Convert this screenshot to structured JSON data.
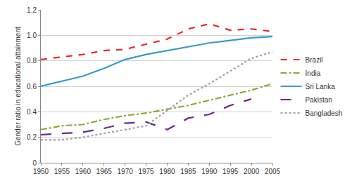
{
  "chart_data": {
    "type": "line",
    "y_label": "Gender ratio in educational attainment",
    "x": [
      1950,
      1955,
      1960,
      1965,
      1970,
      1975,
      1980,
      1985,
      1990,
      1995,
      2000,
      2005
    ],
    "series": [
      {
        "name": "Brazil",
        "color": "#e02b2b",
        "line_style": "dash",
        "values": [
          0.81,
          0.83,
          0.85,
          0.88,
          0.89,
          0.93,
          0.97,
          1.05,
          1.09,
          1.04,
          1.05,
          1.03
        ]
      },
      {
        "name": "India",
        "color": "#8fa83a",
        "line_style": "dashdot",
        "values": [
          0.26,
          0.29,
          0.3,
          0.34,
          0.37,
          0.39,
          0.42,
          0.45,
          0.49,
          0.53,
          0.57,
          0.62
        ]
      },
      {
        "name": "Sri Lanka",
        "color": "#3a9ac9",
        "line_style": "solid",
        "values": [
          0.6,
          0.64,
          0.68,
          0.74,
          0.81,
          0.85,
          0.88,
          0.91,
          0.94,
          0.96,
          0.98,
          0.99
        ]
      },
      {
        "name": "Pakistan",
        "color": "#6a2a8a",
        "line_style": "longdash",
        "values": [
          0.22,
          0.23,
          0.24,
          0.27,
          0.31,
          0.32,
          0.26,
          0.35,
          0.38,
          0.45,
          0.5,
          null
        ]
      },
      {
        "name": "Bangladesh",
        "color": "#a0a0a0",
        "line_style": "dot",
        "values": [
          0.18,
          0.18,
          0.2,
          0.23,
          0.26,
          0.29,
          0.41,
          0.53,
          0.62,
          0.72,
          0.82,
          0.87
        ]
      }
    ],
    "xlim": [
      1950,
      2005
    ],
    "xticks": [
      1950,
      1955,
      1960,
      1965,
      1970,
      1975,
      1980,
      1985,
      1990,
      1995,
      2000,
      2005
    ],
    "ylim": [
      0,
      1.2
    ],
    "yticks": [
      0,
      0.2,
      0.4,
      0.6,
      0.8,
      {
        "value": 1.0,
        "label": "1.0"
      },
      1.2
    ],
    "grid": true,
    "legend": "right"
  }
}
